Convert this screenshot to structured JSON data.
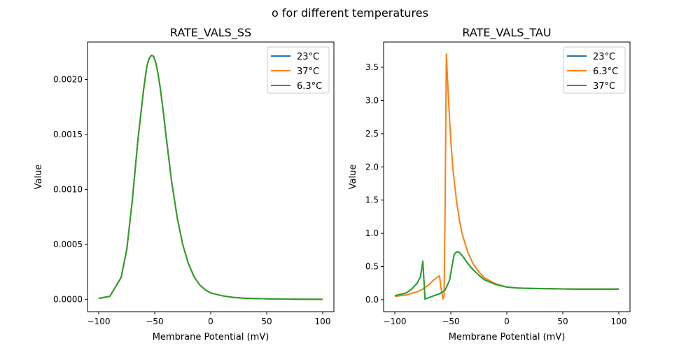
{
  "suptitle": "o for different temperatures",
  "chart_data": [
    {
      "type": "line",
      "title": "RATE_VALS_SS",
      "xlabel": "Membrane Potential (mV)",
      "ylabel": "Value",
      "xlim": [
        -110,
        110
      ],
      "ylim": [
        -0.00011,
        0.00234
      ],
      "xticks": [
        -100,
        -50,
        0,
        50,
        100
      ],
      "xtick_labels": [
        "−100",
        "−50",
        "0",
        "50",
        "100"
      ],
      "yticks": [
        0.0,
        0.0005,
        0.001,
        0.0015,
        0.002
      ],
      "ytick_labels": [
        "0.0000",
        "0.0005",
        "0.0010",
        "0.0015",
        "0.0020"
      ],
      "legend_position": "top-right",
      "grid": false,
      "series": [
        {
          "name": "23°C",
          "color": "#1f77b4",
          "x": [
            -100,
            -90,
            -80,
            -75,
            -70,
            -65,
            -60,
            -57,
            -55,
            -53,
            -51,
            -49,
            -47,
            -45,
            -42,
            -40,
            -35,
            -30,
            -25,
            -20,
            -15,
            -10,
            -5,
            0,
            10,
            20,
            30,
            40,
            50,
            60,
            80,
            100
          ],
          "y": [
            1e-05,
            3e-05,
            0.0002,
            0.00045,
            0.0009,
            0.00145,
            0.0019,
            0.00212,
            0.00219,
            0.00222,
            0.00221,
            0.00215,
            0.00205,
            0.00192,
            0.00168,
            0.0015,
            0.00108,
            0.00075,
            0.0005,
            0.00033,
            0.00021,
            0.000135,
            9e-05,
            6e-05,
            3.5e-05,
            2e-05,
            1.3e-05,
            9e-06,
            7e-06,
            5e-06,
            3e-06,
            2e-06
          ]
        },
        {
          "name": "37°C",
          "color": "#ff7f0e",
          "x": [
            -100,
            -90,
            -80,
            -75,
            -70,
            -65,
            -60,
            -57,
            -55,
            -53,
            -51,
            -49,
            -47,
            -45,
            -42,
            -40,
            -35,
            -30,
            -25,
            -20,
            -15,
            -10,
            -5,
            0,
            10,
            20,
            30,
            40,
            50,
            60,
            80,
            100
          ],
          "y": [
            1e-05,
            3e-05,
            0.0002,
            0.00045,
            0.0009,
            0.00145,
            0.0019,
            0.00212,
            0.00219,
            0.00222,
            0.00221,
            0.00215,
            0.00205,
            0.00192,
            0.00168,
            0.0015,
            0.00108,
            0.00075,
            0.0005,
            0.00033,
            0.00021,
            0.000135,
            9e-05,
            6e-05,
            3.5e-05,
            2e-05,
            1.3e-05,
            9e-06,
            7e-06,
            5e-06,
            3e-06,
            2e-06
          ]
        },
        {
          "name": "6.3°C",
          "color": "#2ca02c",
          "x": [
            -100,
            -90,
            -80,
            -75,
            -70,
            -65,
            -60,
            -57,
            -55,
            -53,
            -51,
            -49,
            -47,
            -45,
            -42,
            -40,
            -35,
            -30,
            -25,
            -20,
            -15,
            -10,
            -5,
            0,
            10,
            20,
            30,
            40,
            50,
            60,
            80,
            100
          ],
          "y": [
            1e-05,
            3e-05,
            0.0002,
            0.00045,
            0.0009,
            0.00145,
            0.0019,
            0.00212,
            0.00219,
            0.00222,
            0.00221,
            0.00215,
            0.00205,
            0.00192,
            0.00168,
            0.0015,
            0.00108,
            0.00075,
            0.0005,
            0.00033,
            0.00021,
            0.000135,
            9e-05,
            6e-05,
            3.5e-05,
            2e-05,
            1.3e-05,
            9e-06,
            7e-06,
            5e-06,
            3e-06,
            2e-06
          ]
        }
      ]
    },
    {
      "type": "line",
      "title": "RATE_VALS_TAU",
      "xlabel": "Membrane Potential (mV)",
      "ylabel": "Value",
      "xlim": [
        -110,
        110
      ],
      "ylim": [
        -0.18,
        3.88
      ],
      "xticks": [
        -100,
        -50,
        0,
        50,
        100
      ],
      "xtick_labels": [
        "−100",
        "−50",
        "0",
        "50",
        "100"
      ],
      "yticks": [
        0.0,
        0.5,
        1.0,
        1.5,
        2.0,
        2.5,
        3.0,
        3.5
      ],
      "ytick_labels": [
        "0.0",
        "0.5",
        "1.0",
        "1.5",
        "2.0",
        "2.5",
        "3.0",
        "3.5"
      ],
      "legend_position": "top-right",
      "grid": false,
      "series": [
        {
          "name": "23°C",
          "color": "#1f77b4",
          "x": [
            -100,
            -90,
            -85,
            -80,
            -77,
            -75,
            -74,
            -73,
            -65,
            -60,
            -57,
            -55,
            -53,
            -51,
            -49,
            -47,
            -45,
            -43,
            -40,
            -35,
            -30,
            -25,
            -20,
            -10,
            0,
            10,
            20,
            40,
            60,
            80,
            100
          ],
          "y": [
            0.06,
            0.1,
            0.16,
            0.25,
            0.35,
            0.58,
            0.3,
            0.01,
            0.06,
            0.09,
            0.12,
            0.15,
            0.22,
            0.3,
            0.5,
            0.68,
            0.72,
            0.72,
            0.67,
            0.55,
            0.45,
            0.37,
            0.3,
            0.23,
            0.19,
            0.175,
            0.17,
            0.165,
            0.16,
            0.16,
            0.16
          ]
        },
        {
          "name": "6.3°C",
          "color": "#ff7f0e",
          "x": [
            -100,
            -90,
            -80,
            -75,
            -70,
            -65,
            -62,
            -60,
            -59,
            -57,
            -56,
            -55,
            -54,
            -52,
            -50,
            -48,
            -45,
            -42,
            -40,
            -35,
            -30,
            -25,
            -20,
            -10,
            0,
            10,
            20,
            40,
            60,
            80,
            100
          ],
          "y": [
            0.05,
            0.07,
            0.12,
            0.16,
            0.22,
            0.3,
            0.34,
            0.36,
            0.2,
            0.01,
            0.05,
            1.5,
            3.7,
            3.0,
            2.4,
            1.95,
            1.5,
            1.17,
            1.0,
            0.72,
            0.54,
            0.42,
            0.33,
            0.24,
            0.19,
            0.175,
            0.17,
            0.165,
            0.16,
            0.16,
            0.16
          ]
        },
        {
          "name": "37°C",
          "color": "#2ca02c",
          "x": [
            -100,
            -90,
            -85,
            -80,
            -77,
            -75,
            -74,
            -73,
            -65,
            -60,
            -57,
            -55,
            -53,
            -51,
            -49,
            -47,
            -45,
            -43,
            -40,
            -35,
            -30,
            -25,
            -20,
            -10,
            0,
            10,
            20,
            40,
            60,
            80,
            100
          ],
          "y": [
            0.06,
            0.1,
            0.16,
            0.25,
            0.35,
            0.58,
            0.3,
            0.01,
            0.06,
            0.09,
            0.12,
            0.15,
            0.22,
            0.3,
            0.5,
            0.68,
            0.72,
            0.72,
            0.67,
            0.55,
            0.45,
            0.37,
            0.3,
            0.23,
            0.19,
            0.175,
            0.17,
            0.165,
            0.16,
            0.16,
            0.16
          ]
        }
      ]
    }
  ]
}
